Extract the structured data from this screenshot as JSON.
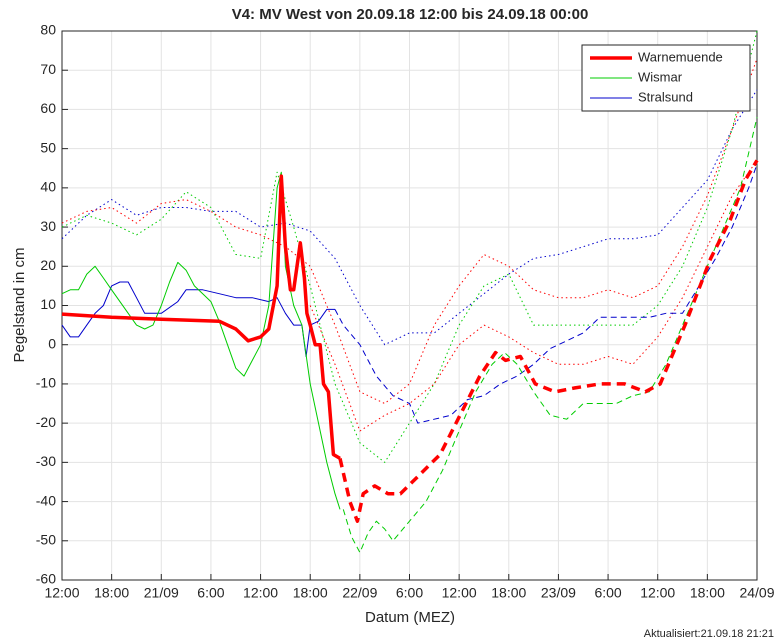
{
  "chart_data": {
    "type": "line",
    "title": "V4: MV West von 20.09.18 12:00 bis 24.09.18 00:00",
    "xlabel": "Datum (MEZ)",
    "ylabel": "Pegelstand in cm",
    "footer": "Aktualisiert:21.09.18 21:21",
    "xlim": [
      0,
      84
    ],
    "xticks": [
      {
        "value": 0,
        "label": "12:00"
      },
      {
        "value": 6,
        "label": "18:00"
      },
      {
        "value": 12,
        "label": "21/09"
      },
      {
        "value": 18,
        "label": "6:00"
      },
      {
        "value": 24,
        "label": "12:00"
      },
      {
        "value": 30,
        "label": "18:00"
      },
      {
        "value": 36,
        "label": "22/09"
      },
      {
        "value": 42,
        "label": "6:00"
      },
      {
        "value": 48,
        "label": "12:00"
      },
      {
        "value": 54,
        "label": "18:00"
      },
      {
        "value": 60,
        "label": "23/09"
      },
      {
        "value": 66,
        "label": "6:00"
      },
      {
        "value": 72,
        "label": "12:00"
      },
      {
        "value": 78,
        "label": "18:00"
      },
      {
        "value": 84,
        "label": "24/09"
      }
    ],
    "ylim": [
      -60,
      80
    ],
    "yticks": [
      -60,
      -50,
      -40,
      -30,
      -20,
      -10,
      0,
      10,
      20,
      30,
      40,
      50,
      60,
      70,
      80
    ],
    "grid": true,
    "legend": "top-right",
    "series": [
      {
        "name": "Warnemuende",
        "color": "#ff0000",
        "linewidth": 3.5,
        "observed": {
          "x": [
            0,
            6,
            12,
            19,
            21,
            22.5,
            24,
            25,
            26,
            26.5,
            27,
            27.6,
            28,
            28.8,
            29.3,
            29.6,
            30,
            30.6,
            31.2,
            31.6,
            32.2,
            32.8,
            33.6
          ],
          "values": [
            7.8,
            7,
            6.5,
            6,
            4,
            1,
            2,
            4,
            15,
            43,
            25,
            14,
            14,
            26,
            17,
            8,
            5,
            0,
            0,
            -10,
            -12,
            -28,
            -29
          ]
        },
        "forecast": {
          "x": [
            33.6,
            34.8,
            35.7,
            36.4,
            37.8,
            39.4,
            40.9,
            43.3,
            45.7,
            48.1,
            50.5,
            52.4,
            53.6,
            55.4,
            57.2,
            59.6,
            62,
            65,
            68,
            70.5,
            72.3,
            75.3,
            78.4,
            80.8,
            82.6,
            84
          ],
          "values": [
            -29,
            -40,
            -45,
            -38,
            -36,
            -38,
            -38,
            -33,
            -28,
            -18,
            -8,
            -2,
            -4,
            -3,
            -10,
            -12,
            -11,
            -10,
            -10,
            -12,
            -10,
            5,
            22,
            32,
            42,
            47
          ]
        },
        "bounds": [
          {
            "x": [
              0,
              3,
              6,
              9,
              12,
              15,
              18,
              21,
              24,
              27,
              30,
              33,
              36,
              39,
              42,
              45,
              48,
              51,
              54,
              57,
              60,
              63,
              66,
              69,
              72,
              75,
              78,
              81,
              84
            ],
            "values": [
              31,
              34,
              35,
              31,
              36,
              37,
              34,
              30,
              28,
              25,
              20,
              5,
              -12,
              -15,
              -10,
              5,
              15,
              23,
              20,
              14,
              12,
              12,
              14,
              12,
              15,
              25,
              38,
              55,
              73
            ]
          },
          {
            "x": [
              30,
              33,
              36,
              39,
              42,
              45,
              48,
              51,
              54,
              57,
              60,
              63,
              66,
              69,
              72,
              75,
              78,
              81,
              84
            ],
            "values": [
              10,
              -5,
              -22,
              -18,
              -15,
              -10,
              0,
              5,
              2,
              -2,
              -5,
              -5,
              -3,
              -5,
              2,
              12,
              25,
              38,
              47
            ]
          }
        ]
      },
      {
        "name": "Wismar",
        "color": "#00cc00",
        "linewidth": 1,
        "observed": {
          "x": [
            0,
            1,
            2,
            3,
            4,
            5,
            6,
            7,
            8,
            9,
            10,
            11,
            12,
            13,
            14,
            15,
            16,
            17,
            18,
            19,
            20,
            21,
            22,
            23,
            24,
            25,
            26,
            26.5,
            27,
            28,
            29,
            30,
            31,
            32,
            33,
            33.6
          ],
          "values": [
            13,
            14,
            14,
            18,
            20,
            17,
            14,
            11,
            8,
            5,
            4,
            5,
            10,
            16,
            21,
            19,
            15,
            13,
            11,
            6,
            0,
            -6,
            -8,
            -4,
            0,
            10,
            40,
            44,
            20,
            10,
            5,
            -10,
            -20,
            -30,
            -38,
            -42
          ]
        },
        "forecast": {
          "x": [
            34,
            35,
            36,
            37,
            38,
            39,
            40,
            42,
            44,
            46,
            48,
            50,
            52,
            53.5,
            55,
            57,
            59,
            61,
            63,
            65,
            67,
            69,
            71,
            73,
            76,
            79,
            82,
            84
          ],
          "values": [
            -42,
            -49,
            -53,
            -48,
            -45,
            -47,
            -50,
            -45,
            -40,
            -32,
            -22,
            -12,
            -5,
            -2,
            -5,
            -12,
            -18,
            -19,
            -15,
            -15,
            -15,
            -13,
            -12,
            -5,
            10,
            25,
            40,
            58
          ]
        },
        "bounds": [
          {
            "x": [
              0,
              3,
              6,
              9,
              12,
              15,
              18,
              21,
              24,
              26,
              28,
              30,
              33,
              36,
              39,
              42,
              45,
              48,
              51,
              54,
              57,
              60,
              63,
              66,
              69,
              72,
              75,
              78,
              81,
              84
            ],
            "values": [
              30,
              33,
              31,
              28,
              32,
              39,
              35,
              23,
              22,
              44,
              30,
              15,
              -10,
              -25,
              -30,
              -20,
              -10,
              5,
              15,
              18,
              5,
              5,
              5,
              5,
              5,
              10,
              20,
              35,
              55,
              80
            ]
          }
        ]
      },
      {
        "name": "Stralsund",
        "color": "#0000cc",
        "linewidth": 1,
        "observed": {
          "x": [
            0,
            1,
            2,
            3,
            4,
            5,
            6,
            7,
            8,
            9,
            10,
            12,
            14,
            15,
            17,
            19,
            21,
            23,
            25,
            26,
            27,
            28,
            29,
            29.5,
            30,
            31,
            32,
            33
          ],
          "values": [
            5,
            2,
            2,
            5,
            8,
            10,
            15,
            16,
            16,
            12,
            8,
            8,
            11,
            14,
            14,
            13,
            12,
            12,
            11,
            12,
            8,
            5,
            5,
            -3,
            5,
            6,
            9,
            9
          ]
        },
        "forecast": {
          "x": [
            33,
            34,
            36,
            38,
            40,
            42,
            43,
            45,
            47,
            49,
            51,
            53,
            55,
            57,
            59,
            61,
            63,
            65,
            67,
            69,
            71,
            73,
            75,
            77,
            79,
            81,
            83,
            84
          ],
          "values": [
            9,
            5,
            0,
            -8,
            -13,
            -15,
            -20,
            -19,
            -18,
            -14,
            -13,
            -10,
            -8,
            -5,
            -1,
            1,
            3,
            7,
            7,
            7,
            7,
            8,
            8,
            15,
            22,
            30,
            40,
            46
          ]
        },
        "bounds": [
          {
            "x": [
              0,
              3,
              6,
              9,
              12,
              15,
              18,
              21,
              24,
              27,
              30,
              33,
              36,
              39,
              42,
              45,
              48,
              51,
              54,
              57,
              60,
              63,
              66,
              69,
              72,
              75,
              78,
              81,
              84
            ],
            "values": [
              27,
              33,
              37,
              33,
              35,
              35,
              34,
              34,
              30,
              31,
              29,
              22,
              10,
              0,
              3,
              3,
              8,
              13,
              18,
              22,
              23,
              25,
              27,
              27,
              28,
              35,
              42,
              55,
              65
            ]
          }
        ]
      }
    ]
  }
}
